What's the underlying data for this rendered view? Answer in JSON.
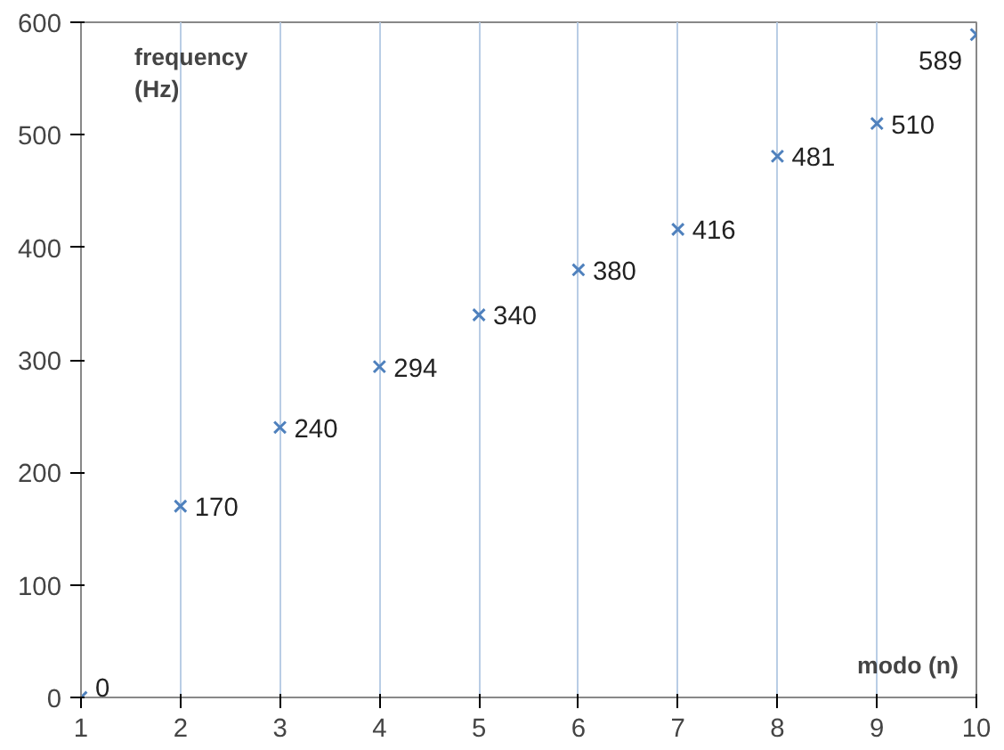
{
  "chart_data": {
    "type": "scatter",
    "xlabel": "modo (n)",
    "ylabel": "frequency\n(Hz)",
    "x": [
      1,
      2,
      3,
      4,
      5,
      6,
      7,
      8,
      9,
      10
    ],
    "values": [
      0,
      170,
      240,
      294,
      340,
      380,
      416,
      481,
      510,
      589
    ],
    "color": "#4f81bd",
    "marker": "cross",
    "data_labels": true,
    "xlim": [
      1,
      10
    ],
    "xticks": [
      1,
      2,
      3,
      4,
      5,
      6,
      7,
      8,
      9,
      10
    ],
    "ylim": [
      0,
      600
    ],
    "yticks": [
      0,
      100,
      200,
      300,
      400,
      500,
      600
    ],
    "grid": "x"
  }
}
